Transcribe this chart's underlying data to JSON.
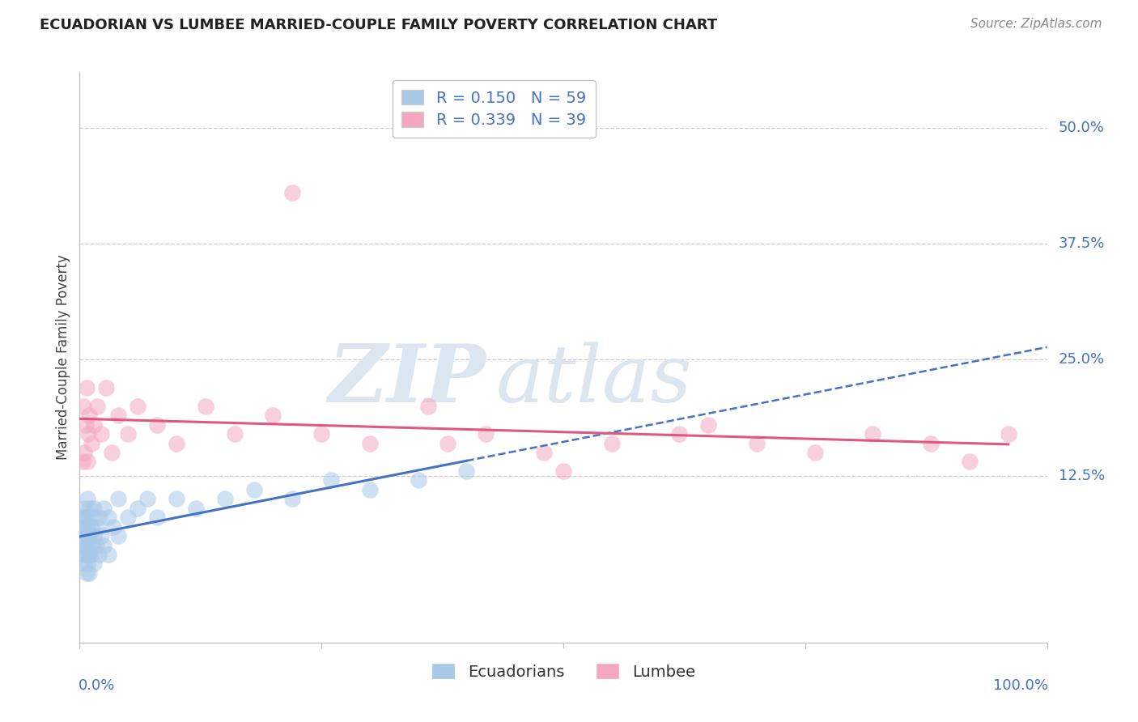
{
  "title": "ECUADORIAN VS LUMBEE MARRIED-COUPLE FAMILY POVERTY CORRELATION CHART",
  "source": "Source: ZipAtlas.com",
  "ylabel": "Married-Couple Family Poverty",
  "ytick_values": [
    0.5,
    0.375,
    0.25,
    0.125
  ],
  "ytick_labels": [
    "50.0%",
    "37.5%",
    "25.0%",
    "12.5%"
  ],
  "xlim": [
    0.0,
    1.0
  ],
  "ylim": [
    -0.055,
    0.56
  ],
  "legend_label1": "Ecuadorians",
  "legend_label2": "Lumbee",
  "R_ecua": "0.150",
  "N_ecua": "59",
  "R_lum": "0.339",
  "N_lum": "39",
  "watermark_zip": "ZIP",
  "watermark_atlas": "atlas",
  "background_color": "#ffffff",
  "grid_color": "#cccccc",
  "ecua_color": "#a8c8e8",
  "lumbee_color": "#f4a8c0",
  "ecua_line_color": "#4472c4",
  "lumbee_line_color": "#e05880",
  "title_color": "#222222",
  "tick_label_color": "#4472c4",
  "source_color": "#888888",
  "watermark_color": "#dce6f0",
  "ecuadorian_x": [
    0.002,
    0.002,
    0.003,
    0.003,
    0.004,
    0.004,
    0.004,
    0.005,
    0.005,
    0.005,
    0.005,
    0.006,
    0.006,
    0.006,
    0.007,
    0.007,
    0.007,
    0.008,
    0.008,
    0.008,
    0.008,
    0.009,
    0.009,
    0.01,
    0.01,
    0.01,
    0.01,
    0.012,
    0.012,
    0.013,
    0.013,
    0.015,
    0.015,
    0.015,
    0.017,
    0.018,
    0.02,
    0.02,
    0.022,
    0.025,
    0.025,
    0.03,
    0.03,
    0.035,
    0.04,
    0.04,
    0.05,
    0.06,
    0.07,
    0.08,
    0.1,
    0.12,
    0.15,
    0.18,
    0.22,
    0.26,
    0.3,
    0.35,
    0.4
  ],
  "ecuadorian_y": [
    0.06,
    0.07,
    0.05,
    0.08,
    0.04,
    0.06,
    0.08,
    0.03,
    0.05,
    0.07,
    0.09,
    0.04,
    0.06,
    0.08,
    0.02,
    0.05,
    0.07,
    0.03,
    0.05,
    0.07,
    0.1,
    0.04,
    0.06,
    0.02,
    0.04,
    0.06,
    0.09,
    0.04,
    0.07,
    0.05,
    0.08,
    0.03,
    0.06,
    0.09,
    0.05,
    0.07,
    0.04,
    0.08,
    0.06,
    0.05,
    0.09,
    0.04,
    0.08,
    0.07,
    0.06,
    0.1,
    0.08,
    0.09,
    0.1,
    0.08,
    0.1,
    0.09,
    0.1,
    0.11,
    0.1,
    0.12,
    0.11,
    0.12,
    0.13
  ],
  "lumbee_x": [
    0.003,
    0.004,
    0.005,
    0.006,
    0.007,
    0.008,
    0.009,
    0.01,
    0.012,
    0.015,
    0.018,
    0.022,
    0.027,
    0.033,
    0.04,
    0.05,
    0.06,
    0.08,
    0.1,
    0.13,
    0.16,
    0.2,
    0.25,
    0.3,
    0.36,
    0.42,
    0.48,
    0.55,
    0.62,
    0.7,
    0.76,
    0.82,
    0.88,
    0.92,
    0.96,
    0.5,
    0.38,
    0.65,
    0.22
  ],
  "lumbee_y": [
    0.14,
    0.2,
    0.15,
    0.18,
    0.22,
    0.14,
    0.17,
    0.19,
    0.16,
    0.18,
    0.2,
    0.17,
    0.22,
    0.15,
    0.19,
    0.17,
    0.2,
    0.18,
    0.16,
    0.2,
    0.17,
    0.19,
    0.17,
    0.16,
    0.2,
    0.17,
    0.15,
    0.16,
    0.17,
    0.16,
    0.15,
    0.17,
    0.16,
    0.14,
    0.17,
    0.13,
    0.16,
    0.18,
    0.43
  ]
}
